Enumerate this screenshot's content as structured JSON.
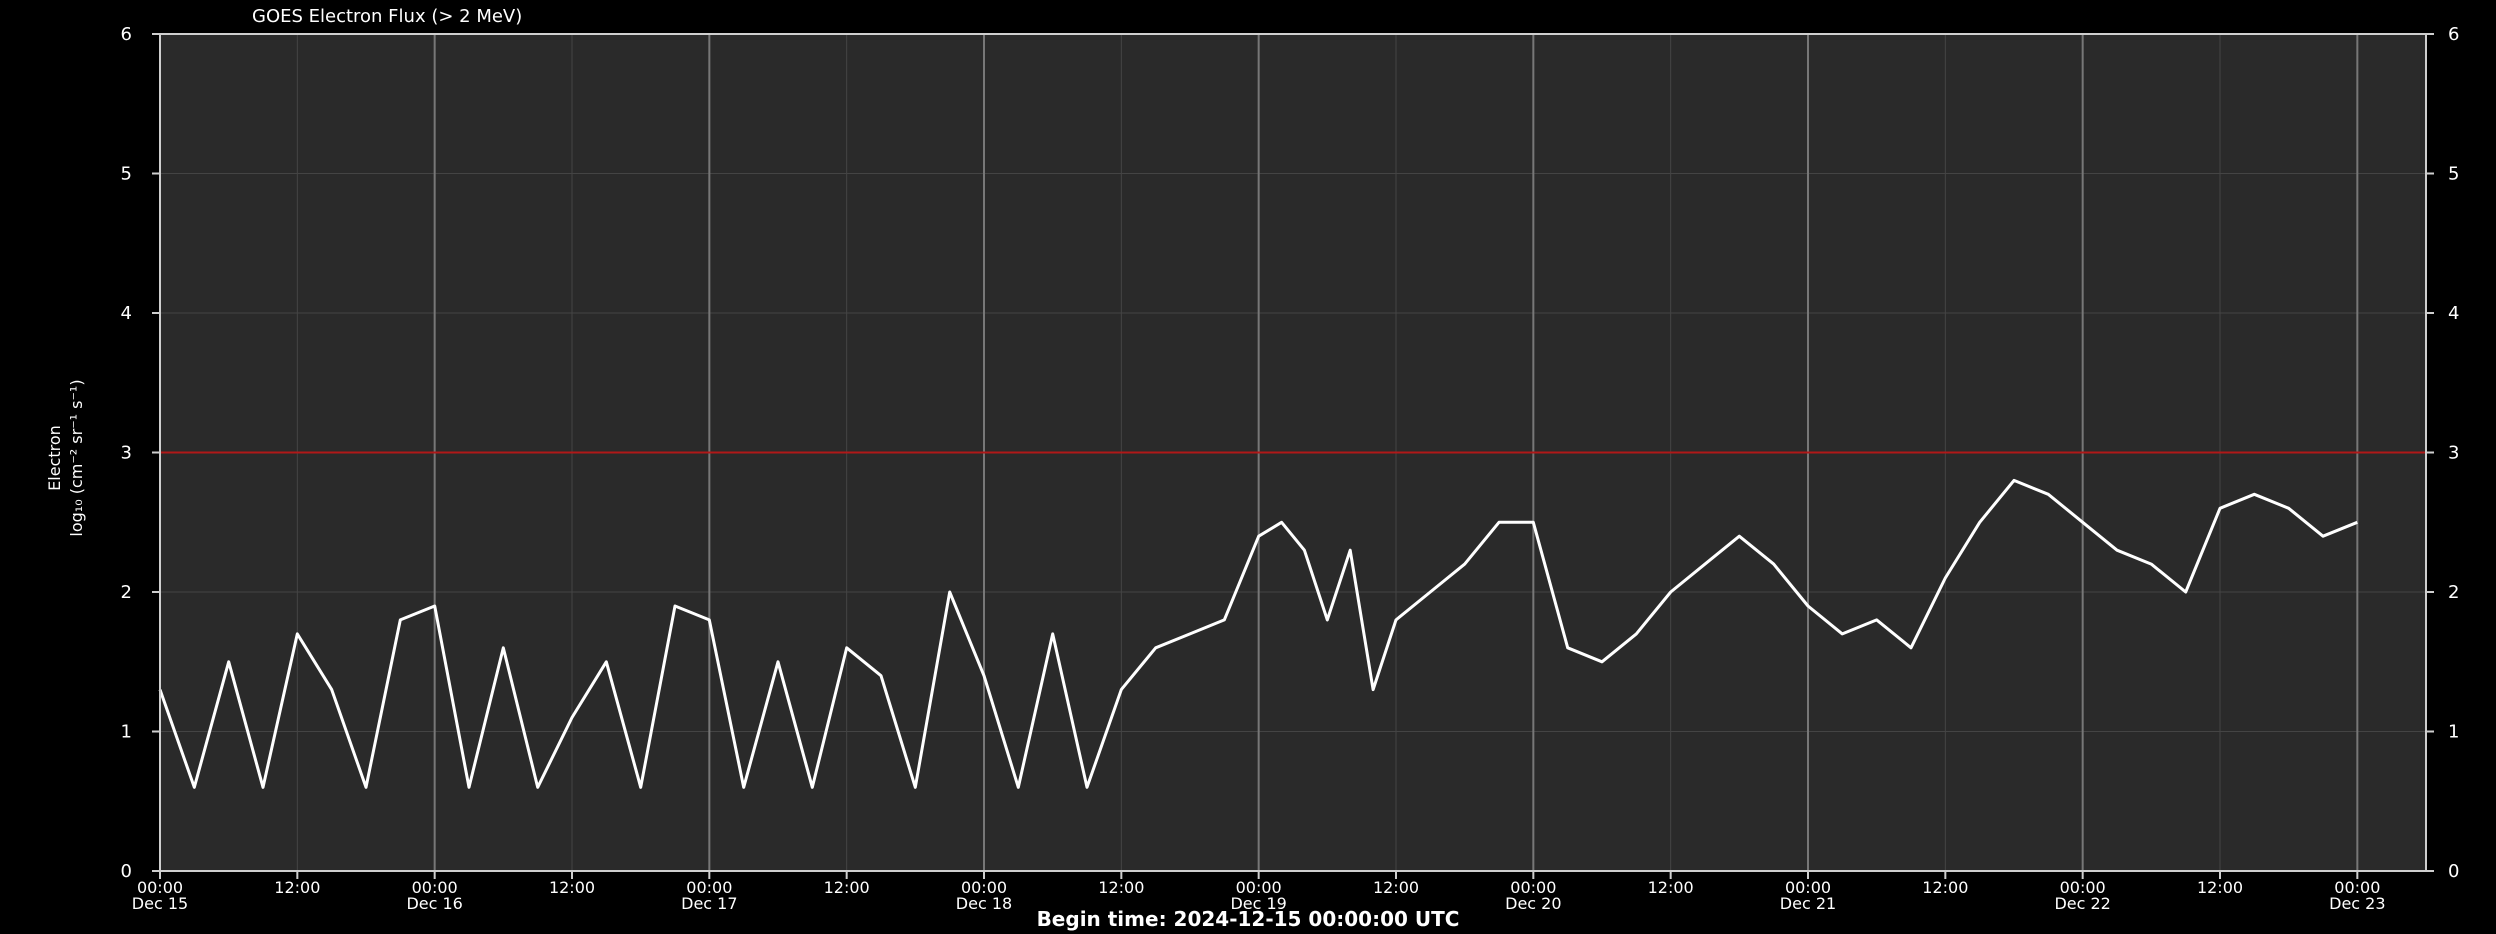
{
  "chart_data": {
    "type": "line",
    "title": "GOES Electron Flux (> 2 MeV)",
    "ylabel_line1": "Electron",
    "ylabel_line2": "log₁₀ (cm⁻² sr⁻¹ s⁻¹)",
    "footer": "Begin time: 2024-12-15 00:00:00 UTC",
    "ylim": [
      0,
      6
    ],
    "yticks": [
      "0",
      "1",
      "2",
      "3",
      "4",
      "5",
      "6"
    ],
    "xlim": [
      "2024-12-15 00:00",
      "2024-12-23 06:00"
    ],
    "xticks": [
      {
        "time": "2024-12-15 00:00",
        "top": "00:00",
        "bottom": "Dec 15"
      },
      {
        "time": "2024-12-15 12:00",
        "top": "12:00",
        "bottom": ""
      },
      {
        "time": "2024-12-16 00:00",
        "top": "00:00",
        "bottom": "Dec 16"
      },
      {
        "time": "2024-12-16 12:00",
        "top": "12:00",
        "bottom": ""
      },
      {
        "time": "2024-12-17 00:00",
        "top": "00:00",
        "bottom": "Dec 17"
      },
      {
        "time": "2024-12-17 12:00",
        "top": "12:00",
        "bottom": ""
      },
      {
        "time": "2024-12-18 00:00",
        "top": "00:00",
        "bottom": "Dec 18"
      },
      {
        "time": "2024-12-18 12:00",
        "top": "12:00",
        "bottom": ""
      },
      {
        "time": "2024-12-19 00:00",
        "top": "00:00",
        "bottom": "Dec 19"
      },
      {
        "time": "2024-12-19 12:00",
        "top": "12:00",
        "bottom": ""
      },
      {
        "time": "2024-12-20 00:00",
        "top": "00:00",
        "bottom": "Dec 20"
      },
      {
        "time": "2024-12-20 12:00",
        "top": "12:00",
        "bottom": ""
      },
      {
        "time": "2024-12-21 00:00",
        "top": "00:00",
        "bottom": "Dec 21"
      },
      {
        "time": "2024-12-21 12:00",
        "top": "12:00",
        "bottom": ""
      },
      {
        "time": "2024-12-22 00:00",
        "top": "00:00",
        "bottom": "Dec 22"
      },
      {
        "time": "2024-12-22 12:00",
        "top": "12:00",
        "bottom": ""
      },
      {
        "time": "2024-12-23 00:00",
        "top": "00:00",
        "bottom": "Dec 23"
      }
    ],
    "threshold": {
      "y": 3,
      "color": "#b01818"
    },
    "grid": true,
    "colors": {
      "background": "#000000",
      "plot_bg": "#2a2a2a",
      "line": "#ffffff",
      "grid": "#444444",
      "major_grid": "#777777"
    },
    "series": [
      {
        "values": [
          [
            "2024-12-15 00:00",
            1.3
          ],
          [
            "2024-12-15 03:00",
            0.6
          ],
          [
            "2024-12-15 06:00",
            1.5
          ],
          [
            "2024-12-15 09:00",
            0.6
          ],
          [
            "2024-12-15 12:00",
            1.7
          ],
          [
            "2024-12-15 15:00",
            1.3
          ],
          [
            "2024-12-15 18:00",
            0.6
          ],
          [
            "2024-12-15 21:00",
            1.8
          ],
          [
            "2024-12-16 00:00",
            1.9
          ],
          [
            "2024-12-16 03:00",
            0.6
          ],
          [
            "2024-12-16 06:00",
            1.6
          ],
          [
            "2024-12-16 09:00",
            0.6
          ],
          [
            "2024-12-16 12:00",
            1.1
          ],
          [
            "2024-12-16 15:00",
            1.5
          ],
          [
            "2024-12-16 18:00",
            0.6
          ],
          [
            "2024-12-16 21:00",
            1.9
          ],
          [
            "2024-12-17 00:00",
            1.8
          ],
          [
            "2024-12-17 03:00",
            0.6
          ],
          [
            "2024-12-17 06:00",
            1.5
          ],
          [
            "2024-12-17 09:00",
            0.6
          ],
          [
            "2024-12-17 12:00",
            1.6
          ],
          [
            "2024-12-17 15:00",
            1.4
          ],
          [
            "2024-12-17 18:00",
            0.6
          ],
          [
            "2024-12-17 21:00",
            2.0
          ],
          [
            "2024-12-18 00:00",
            1.4
          ],
          [
            "2024-12-18 03:00",
            0.6
          ],
          [
            "2024-12-18 06:00",
            1.7
          ],
          [
            "2024-12-18 09:00",
            0.6
          ],
          [
            "2024-12-18 12:00",
            1.3
          ],
          [
            "2024-12-18 15:00",
            1.6
          ],
          [
            "2024-12-18 18:00",
            1.7
          ],
          [
            "2024-12-18 21:00",
            1.8
          ],
          [
            "2024-12-19 00:00",
            2.4
          ],
          [
            "2024-12-19 02:00",
            2.5
          ],
          [
            "2024-12-19 04:00",
            2.3
          ],
          [
            "2024-12-19 06:00",
            1.8
          ],
          [
            "2024-12-19 08:00",
            2.3
          ],
          [
            "2024-12-19 10:00",
            1.3
          ],
          [
            "2024-12-19 12:00",
            1.8
          ],
          [
            "2024-12-19 15:00",
            2.0
          ],
          [
            "2024-12-19 18:00",
            2.2
          ],
          [
            "2024-12-19 21:00",
            2.5
          ],
          [
            "2024-12-20 00:00",
            2.5
          ],
          [
            "2024-12-20 03:00",
            1.6
          ],
          [
            "2024-12-20 06:00",
            1.5
          ],
          [
            "2024-12-20 09:00",
            1.7
          ],
          [
            "2024-12-20 12:00",
            2.0
          ],
          [
            "2024-12-20 15:00",
            2.2
          ],
          [
            "2024-12-20 18:00",
            2.4
          ],
          [
            "2024-12-20 21:00",
            2.2
          ],
          [
            "2024-12-21 00:00",
            1.9
          ],
          [
            "2024-12-21 03:00",
            1.7
          ],
          [
            "2024-12-21 06:00",
            1.8
          ],
          [
            "2024-12-21 09:00",
            1.6
          ],
          [
            "2024-12-21 12:00",
            2.1
          ],
          [
            "2024-12-21 15:00",
            2.5
          ],
          [
            "2024-12-21 18:00",
            2.8
          ],
          [
            "2024-12-21 21:00",
            2.7
          ],
          [
            "2024-12-22 00:00",
            2.5
          ],
          [
            "2024-12-22 03:00",
            2.3
          ],
          [
            "2024-12-22 06:00",
            2.2
          ],
          [
            "2024-12-22 09:00",
            2.0
          ],
          [
            "2024-12-22 12:00",
            2.6
          ],
          [
            "2024-12-22 15:00",
            2.7
          ],
          [
            "2024-12-22 18:00",
            2.6
          ],
          [
            "2024-12-22 21:00",
            2.4
          ],
          [
            "2024-12-23 00:00",
            2.5
          ]
        ]
      }
    ]
  }
}
